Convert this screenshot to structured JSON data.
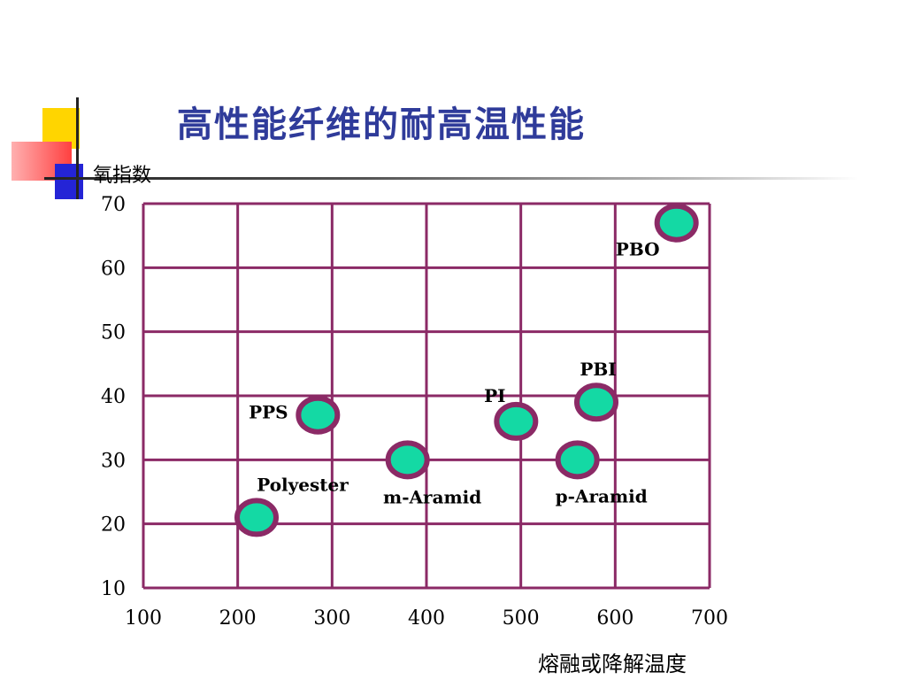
{
  "slide": {
    "title": "高性能纤维的耐高温性能"
  },
  "colors": {
    "title": "#2f3b9a",
    "grid": "#8b2a66",
    "marker_fill": "#14d9a4",
    "marker_ring": "#8b2a66",
    "deco_yellow": "#ffd500",
    "deco_red": "#ff4040",
    "deco_blue": "#2424d6"
  },
  "chart_data": {
    "type": "scatter",
    "title": "",
    "ylabel": "氧指数",
    "xlabel": "熔融或降解温度",
    "xlim": [
      100,
      700
    ],
    "ylim": [
      10,
      70
    ],
    "x_ticks": [
      "100",
      "200",
      "300",
      "400",
      "500",
      "600",
      "700"
    ],
    "y_ticks": [
      "10",
      "20",
      "30",
      "40",
      "50",
      "60",
      "70"
    ],
    "grid": true,
    "points": [
      {
        "label": "Polyester",
        "x": 220,
        "y": 21
      },
      {
        "label": "PPS",
        "x": 285,
        "y": 37
      },
      {
        "label": "m-Aramid",
        "x": 380,
        "y": 30
      },
      {
        "label": "PI",
        "x": 495,
        "y": 36
      },
      {
        "label": "p-Aramid",
        "x": 560,
        "y": 30
      },
      {
        "label": "PBI",
        "x": 580,
        "y": 39
      },
      {
        "label": "PBO",
        "x": 665,
        "y": 67
      }
    ]
  }
}
